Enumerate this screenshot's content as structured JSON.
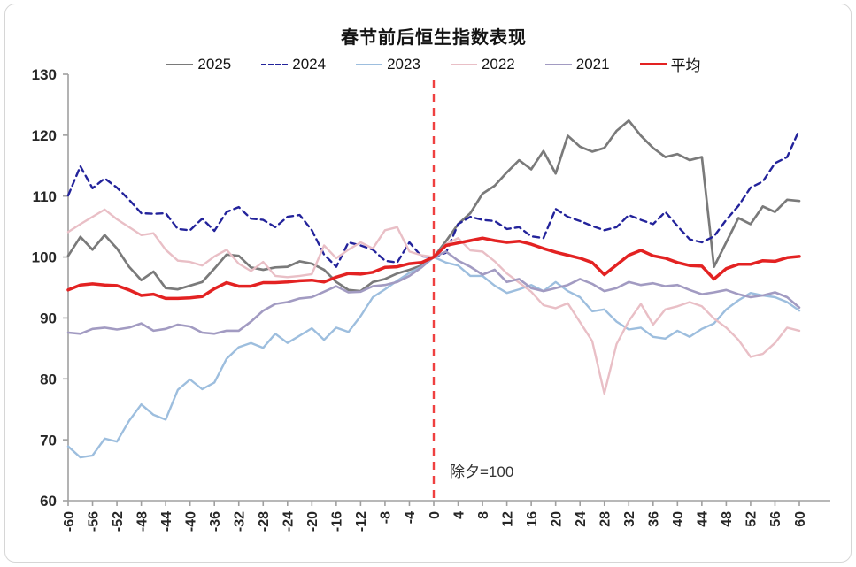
{
  "header": {
    "title": "春节前后恒生指数表现"
  },
  "annotation": {
    "text": "除夕=100"
  },
  "colors": {
    "axis": "#a0a0a0",
    "tick_text": "#262626",
    "reference_line": "#ef4040",
    "card_border": "#d6d6d6"
  },
  "chart_data": {
    "type": "line",
    "title": "春节前后恒生指数表现",
    "xlabel": "",
    "ylabel": "",
    "xlim": [
      -60,
      60
    ],
    "ylim": [
      60,
      130
    ],
    "grid": false,
    "legend_position": "top",
    "yticks": [
      60,
      70,
      80,
      90,
      100,
      110,
      120,
      130
    ],
    "xticks": [
      -60,
      -56,
      -52,
      -48,
      -44,
      -40,
      -36,
      -32,
      -28,
      -24,
      -20,
      -16,
      -12,
      -8,
      -4,
      0,
      4,
      8,
      12,
      16,
      20,
      24,
      28,
      32,
      36,
      40,
      44,
      48,
      52,
      56,
      60
    ],
    "reference_line": {
      "x": 0,
      "label": "除夕=100",
      "color": "#ef4040",
      "dashed": true
    },
    "x": [
      -60,
      -58,
      -56,
      -54,
      -52,
      -50,
      -48,
      -46,
      -44,
      -42,
      -40,
      -38,
      -36,
      -34,
      -32,
      -30,
      -28,
      -26,
      -24,
      -22,
      -20,
      -18,
      -16,
      -14,
      -12,
      -10,
      -8,
      -6,
      -4,
      -2,
      0,
      2,
      4,
      6,
      8,
      10,
      12,
      14,
      16,
      18,
      20,
      22,
      24,
      26,
      28,
      30,
      32,
      34,
      36,
      38,
      40,
      42,
      44,
      46,
      48,
      50,
      52,
      54,
      56,
      58,
      60
    ],
    "series": [
      {
        "name": "2025",
        "color": "#7a7a7a",
        "dash": null,
        "width": 2.7,
        "values": [
          100.2,
          103.3,
          101.2,
          103.6,
          101.4,
          98.4,
          96.2,
          97.6,
          94.9,
          94.7,
          95.3,
          95.9,
          98.1,
          100.4,
          100.2,
          98.3,
          97.9,
          98.3,
          98.4,
          99.3,
          98.9,
          97.9,
          95.9,
          94.6,
          94.4,
          95.9,
          96.4,
          97.3,
          97.9,
          98.6,
          100,
          102.6,
          105.4,
          107.2,
          110.4,
          111.7,
          113.9,
          115.9,
          114.4,
          117.4,
          113.7,
          119.9,
          118.1,
          117.3,
          117.9,
          120.7,
          122.4,
          119.9,
          117.9,
          116.4,
          116.9,
          115.9,
          116.4,
          98.4,
          102.4,
          106.4,
          105.4,
          108.3,
          107.4,
          109.4,
          109.2
        ]
      },
      {
        "name": "2024",
        "color": "#23239b",
        "dash": "7 5",
        "width": 2.4,
        "values": [
          110.1,
          114.9,
          111.3,
          112.9,
          111.4,
          109.4,
          107.2,
          107.1,
          107.2,
          104.6,
          104.4,
          106.3,
          104.3,
          107.4,
          108.2,
          106.3,
          106.1,
          104.9,
          106.6,
          106.9,
          104.4,
          100.4,
          98.4,
          102.4,
          101.9,
          101.2,
          99.4,
          99.1,
          102.4,
          100.1,
          100,
          100.7,
          105.4,
          106.6,
          106.1,
          105.9,
          104.6,
          104.9,
          103.4,
          103.1,
          107.9,
          106.6,
          105.9,
          105.1,
          104.4,
          104.9,
          106.9,
          106.1,
          105.4,
          107.4,
          105.1,
          102.9,
          102.4,
          103.4,
          106.1,
          108.4,
          111.4,
          112.4,
          115.4,
          116.4,
          120.9
        ]
      },
      {
        "name": "2023",
        "color": "#9dbede",
        "dash": null,
        "width": 2.4,
        "values": [
          68.9,
          67.1,
          67.4,
          70.2,
          69.7,
          73.1,
          75.8,
          74.1,
          73.3,
          78.2,
          79.9,
          78.3,
          79.4,
          83.3,
          85.2,
          85.9,
          85.1,
          87.4,
          85.9,
          87.1,
          88.3,
          86.4,
          88.4,
          87.7,
          90.3,
          93.4,
          94.7,
          96.1,
          97.4,
          98.4,
          100,
          99.1,
          98.6,
          96.9,
          96.9,
          95.3,
          94.1,
          94.7,
          95.4,
          94.4,
          95.9,
          94.4,
          93.4,
          91.1,
          91.4,
          89.4,
          88.1,
          88.4,
          86.9,
          86.6,
          87.9,
          86.9,
          88.2,
          89.1,
          91.4,
          92.9,
          94.1,
          93.7,
          93.4,
          92.6,
          91.2
        ]
      },
      {
        "name": "2022",
        "color": "#e9bfc6",
        "dash": null,
        "width": 2.4,
        "values": [
          104.1,
          105.4,
          106.6,
          107.8,
          106.2,
          104.9,
          103.6,
          103.9,
          101.2,
          99.4,
          99.2,
          98.6,
          100.1,
          101.2,
          98.9,
          97.7,
          99.2,
          96.9,
          96.7,
          96.9,
          97.2,
          101.9,
          99.8,
          101.2,
          102.4,
          101.4,
          104.4,
          104.9,
          100.9,
          100.3,
          100,
          102.1,
          103.1,
          101.1,
          100.9,
          99.3,
          97.3,
          95.8,
          94.3,
          92.1,
          91.6,
          92.4,
          89.3,
          86.2,
          77.6,
          85.7,
          89.5,
          92.3,
          88.9,
          91.4,
          91.9,
          92.6,
          91.9,
          89.9,
          88.4,
          86.4,
          83.6,
          84.1,
          85.9,
          88.4,
          87.9
        ]
      },
      {
        "name": "2021",
        "color": "#a29bc2",
        "dash": null,
        "width": 2.6,
        "values": [
          87.6,
          87.4,
          88.2,
          88.4,
          88.1,
          88.4,
          89.1,
          87.9,
          88.2,
          88.9,
          88.6,
          87.6,
          87.4,
          87.9,
          87.9,
          89.4,
          91.2,
          92.3,
          92.6,
          93.2,
          93.4,
          94.3,
          95.2,
          94.2,
          94.3,
          95.2,
          95.4,
          95.9,
          96.9,
          98.3,
          100,
          100.9,
          99.4,
          98.4,
          97.1,
          97.9,
          95.9,
          96.4,
          94.9,
          94.4,
          94.9,
          95.4,
          96.4,
          95.6,
          94.4,
          94.9,
          95.9,
          95.4,
          95.7,
          95.2,
          95.4,
          94.6,
          93.9,
          94.2,
          94.6,
          93.9,
          93.4,
          93.7,
          94.2,
          93.4,
          91.7
        ]
      },
      {
        "name": "平均",
        "color": "#e32222",
        "dash": null,
        "width": 3.5,
        "values": [
          94.6,
          95.4,
          95.6,
          95.4,
          95.3,
          94.6,
          93.7,
          93.9,
          93.2,
          93.2,
          93.3,
          93.5,
          94.8,
          95.8,
          95.2,
          95.2,
          95.8,
          95.8,
          95.9,
          96.1,
          96.2,
          95.9,
          96.7,
          97.3,
          97.2,
          97.5,
          98.3,
          98.4,
          98.9,
          99.1,
          100,
          101.9,
          102.3,
          102.7,
          103.1,
          102.7,
          102.4,
          102.6,
          102.1,
          101.4,
          100.8,
          100.3,
          99.8,
          99.1,
          97.1,
          98.7,
          100.3,
          101.1,
          100.2,
          99.8,
          99.1,
          98.6,
          98.5,
          96.4,
          98.1,
          98.8,
          98.8,
          99.4,
          99.3,
          99.9,
          100.1
        ]
      }
    ]
  }
}
